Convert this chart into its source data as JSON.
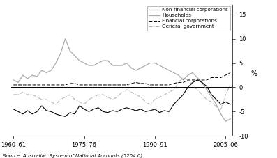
{
  "ylabel": "%",
  "source": "Source: Australian System of National Accounts (5204.0).",
  "x_labels": [
    "1960–61",
    "1975–76",
    "1990–91",
    "2005–06"
  ],
  "ylim": [
    -10,
    17
  ],
  "yticks": [
    -10,
    -5,
    0,
    5,
    10,
    15
  ],
  "background": "#ffffff",
  "non_financial": [
    -4.5,
    -5.0,
    -5.5,
    -4.8,
    -5.5,
    -5.0,
    -3.8,
    -4.8,
    -5.0,
    -5.5,
    -5.8,
    -6.0,
    -5.2,
    -5.5,
    -3.8,
    -4.5,
    -5.0,
    -4.5,
    -4.2,
    -5.0,
    -5.2,
    -4.8,
    -5.0,
    -4.5,
    -4.2,
    -4.5,
    -4.8,
    -4.5,
    -5.0,
    -4.8,
    -4.5,
    -5.2,
    -4.8,
    -5.0,
    -3.5,
    -2.5,
    -1.5,
    0.0,
    1.0,
    1.5,
    1.0,
    0.2,
    -1.5,
    -2.5,
    -3.5,
    -3.0,
    -3.5
  ],
  "households": [
    1.5,
    1.0,
    2.5,
    1.8,
    2.5,
    2.2,
    3.5,
    3.0,
    3.5,
    5.0,
    7.0,
    10.0,
    7.5,
    6.5,
    5.5,
    5.0,
    4.5,
    4.5,
    5.0,
    5.5,
    5.5,
    4.5,
    4.5,
    4.5,
    5.0,
    4.0,
    3.5,
    4.0,
    4.5,
    5.0,
    5.0,
    4.5,
    4.0,
    3.5,
    3.0,
    2.5,
    1.5,
    2.5,
    3.0,
    2.0,
    1.0,
    -0.5,
    -2.0,
    -3.5,
    -5.5,
    -7.0,
    -6.5
  ],
  "financial": [
    0.5,
    0.5,
    0.5,
    0.5,
    0.5,
    0.5,
    0.5,
    0.5,
    0.5,
    0.5,
    0.5,
    0.5,
    0.8,
    0.8,
    0.5,
    0.5,
    0.5,
    0.5,
    0.5,
    0.5,
    0.5,
    0.5,
    0.5,
    0.5,
    0.5,
    0.8,
    1.0,
    0.8,
    0.8,
    0.5,
    0.5,
    0.5,
    0.5,
    0.5,
    0.8,
    1.0,
    1.0,
    1.5,
    1.5,
    1.5,
    1.5,
    1.5,
    2.0,
    2.0,
    2.0,
    2.5,
    3.0
  ],
  "general_govt": [
    -1.5,
    -1.5,
    -1.0,
    -1.5,
    -1.5,
    -2.0,
    -2.5,
    -2.5,
    -3.0,
    -3.5,
    -2.5,
    -2.0,
    -1.5,
    -2.5,
    -3.0,
    -3.5,
    -2.5,
    -2.0,
    -1.5,
    -1.5,
    -2.0,
    -2.5,
    -2.0,
    -1.0,
    -0.5,
    -1.0,
    -1.5,
    -2.0,
    -3.0,
    -3.5,
    -2.5,
    -2.0,
    -1.5,
    -1.0,
    -0.5,
    1.0,
    2.0,
    1.5,
    0.5,
    -0.5,
    -1.5,
    -2.5,
    -3.0,
    -4.0,
    -4.5,
    -1.5,
    0.5
  ],
  "non_financial_color": "#000000",
  "households_color": "#aaaaaa",
  "financial_color": "#000000",
  "general_govt_color": "#aaaaaa",
  "legend_labels": [
    "Non-financial corporations",
    "Households",
    "Financial corporations",
    "General government"
  ]
}
